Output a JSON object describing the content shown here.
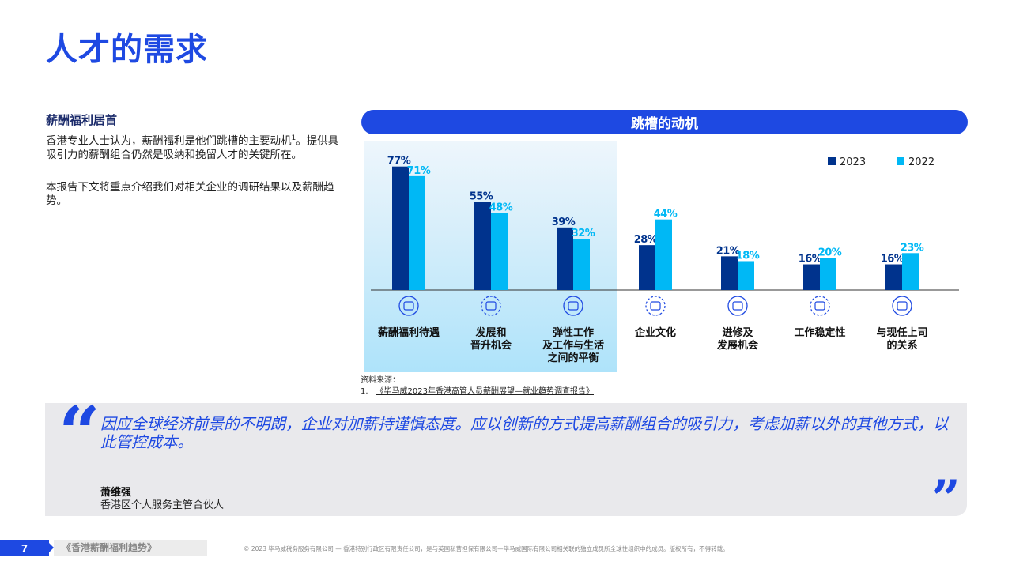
{
  "title": "人才的需求",
  "section": {
    "heading": "薪酬福利居首",
    "para1": "香港专业人士认为，薪酬福利是他们跳槽的主要动机",
    "para1_sup": "1",
    "para1_cont": "。提供具吸引力的薪酬组合仍然是吸纳和挽留人才的关键所在。",
    "para2": "本报告下文将重点介绍我们对相关企业的调研结果以及薪酬趋势。"
  },
  "chart_banner": "跳槽的动机",
  "colors": {
    "accent": "#1E49E2",
    "series_2023": "#00338D",
    "series_2022": "#00B8F5"
  },
  "chart_data": {
    "type": "bar",
    "title": "跳槽的动机",
    "categories": [
      [
        "薪酬福利待遇"
      ],
      [
        "发展和",
        "晋升机会"
      ],
      [
        "弹性工作",
        "及工作与生活",
        "之间的平衡"
      ],
      [
        "企业文化"
      ],
      [
        "进修及",
        "发展机会"
      ],
      [
        "工作稳定性"
      ],
      [
        "与现任上司",
        "的关系"
      ]
    ],
    "icons": [
      "salary-icon",
      "career-ladder-icon",
      "work-life-balance-icon",
      "culture-icon",
      "training-icon",
      "stability-icon",
      "manager-relationship-icon"
    ],
    "series": [
      {
        "name": "2023",
        "values": [
          77,
          55,
          39,
          28,
          21,
          16,
          16
        ]
      },
      {
        "name": "2022",
        "values": [
          71,
          48,
          32,
          44,
          18,
          20,
          23
        ]
      }
    ],
    "value_suffix": "%",
    "legend": "top-right",
    "highlighted_categories": 3
  },
  "source": {
    "label": "资料来源：",
    "index": "1.",
    "text": "《毕马威2023年香港高管人员薪酬展望—就业趋势调查报告》"
  },
  "quote": {
    "open_mark": "“",
    "close_mark": "”",
    "text": "因应全球经济前景的不明朗，企业对加薪持谨慎态度。应以创新的方式提高薪酬组合的吸引力，考虑加薪以外的其他方式，以此管控成本。",
    "author": "萧维强",
    "role": "香港区个人服务主管合伙人"
  },
  "footer": {
    "page": "7",
    "doc": "《香港薪酬福利趋势》",
    "copyright": "© 2023 毕马威税务服务有限公司 — 香港特别行政区有限责任公司，是与英国私营担保有限公司—毕马威国际有限公司相关联的独立成员所全球性组织中的成员。版权所有，不得转载。"
  }
}
